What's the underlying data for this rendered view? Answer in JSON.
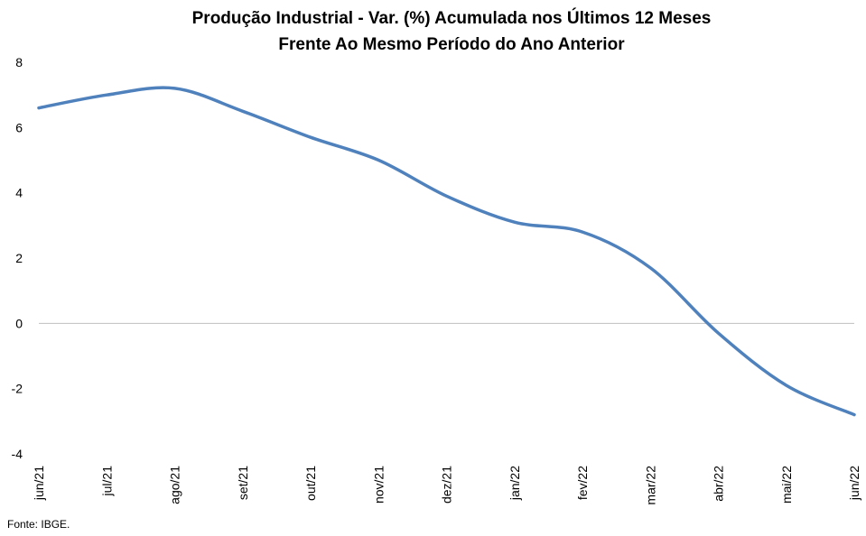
{
  "chart_data": {
    "type": "line",
    "title": "Produção Industrial - Var. (%) Acumulada nos Últimos 12 Meses",
    "subtitle": "Frente Ao Mesmo Período do Ano Anterior",
    "categories": [
      "jun/21",
      "jul/21",
      "ago/21",
      "set/21",
      "out/21",
      "nov/21",
      "dez/21",
      "jan/22",
      "fev/22",
      "mar/22",
      "abr/22",
      "mai/22",
      "jun/22"
    ],
    "series": [
      {
        "values": [
          6.6,
          7.0,
          7.2,
          6.5,
          5.7,
          5.0,
          3.9,
          3.1,
          2.8,
          1.7,
          -0.3,
          -1.9,
          -2.8
        ]
      }
    ],
    "ylim": [
      -4,
      8
    ],
    "yticks": [
      -4,
      -2,
      0,
      2,
      4,
      6,
      8
    ],
    "ytick_labels": [
      "-4",
      "-2",
      "0",
      "2",
      "4",
      "6",
      "8"
    ],
    "line_color": "#4F81BD",
    "zero_line_color": "#BFBFBF",
    "grid": false
  },
  "source_note": "Fonte: IBGE."
}
